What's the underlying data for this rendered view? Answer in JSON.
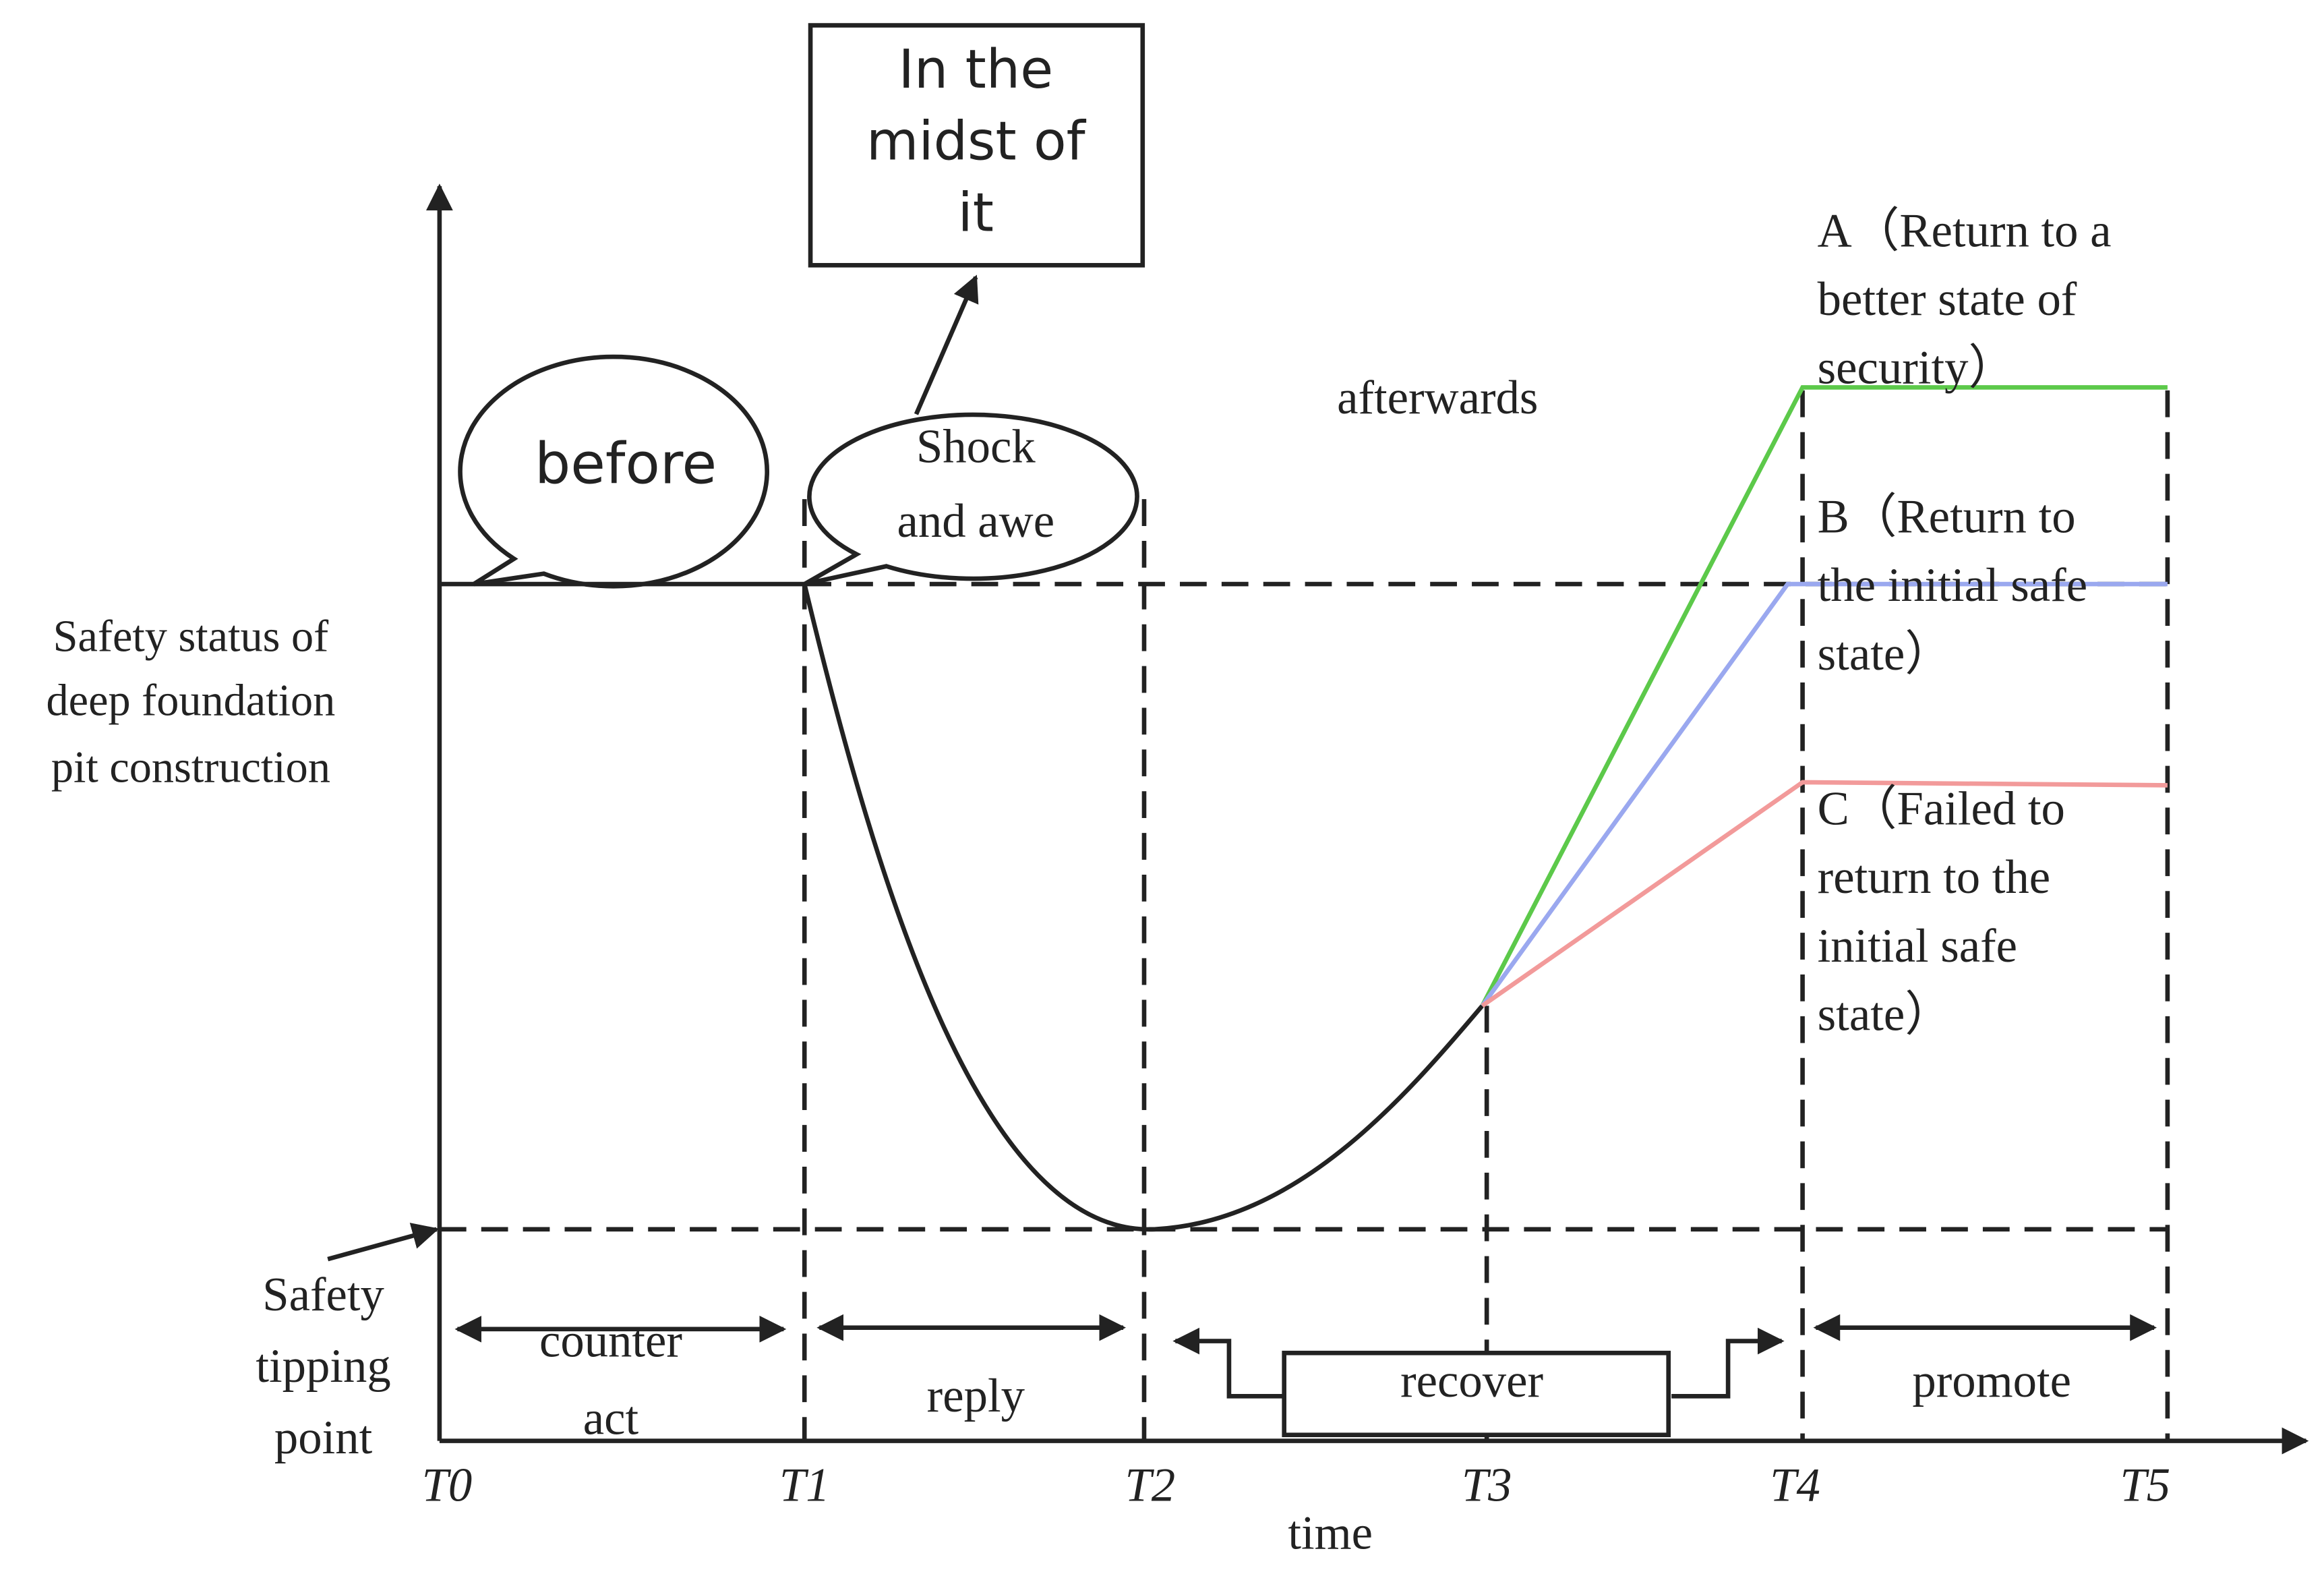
{
  "box": {
    "lines": [
      "In the",
      "midst of",
      "it"
    ]
  },
  "bubbles": {
    "before": "before",
    "shock": [
      "Shock",
      "and awe"
    ]
  },
  "afterwards": "afterwards",
  "outcomes": {
    "a": [
      "A（Return to a",
      "better state of",
      "security）"
    ],
    "b": [
      "B（Return to",
      "the initial safe",
      "state）"
    ],
    "c": [
      "C（Failed to",
      "return to the",
      "initial safe",
      "state）"
    ]
  },
  "y_axis_label": [
    "Safety status of",
    "deep foundation",
    "pit construction"
  ],
  "tipping_label": [
    "Safety",
    "tipping",
    "point"
  ],
  "phases": {
    "counter_act": [
      "counter",
      "act"
    ],
    "reply": "reply",
    "recover": "recover",
    "promote": "promote"
  },
  "ticks": [
    "T0",
    "T1",
    "T2",
    "T3",
    "T4",
    "T5"
  ],
  "x_axis_label": "time"
}
